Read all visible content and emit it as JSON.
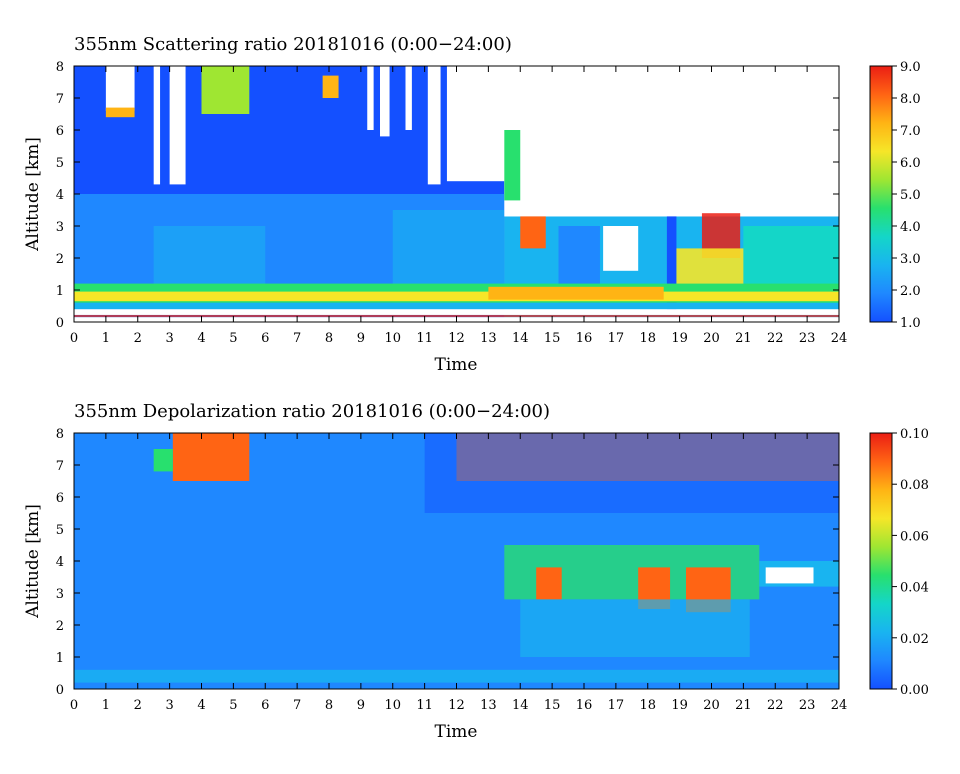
{
  "palette": [
    "#1450ff",
    "#1f88ff",
    "#19b4f0",
    "#14d6c8",
    "#28e06e",
    "#9fe632",
    "#f6e628",
    "#ffb414",
    "#ff6414",
    "#eb1e14"
  ],
  "chart_data": [
    {
      "type": "heatmap",
      "title": "355nm Scattering ratio  20181016 (0:00−24:00)",
      "xlabel": "Time",
      "ylabel": "Altitude [km]",
      "xlim": [
        0,
        24
      ],
      "ylim": [
        0,
        8
      ],
      "x_ticks": [
        "0",
        "1",
        "2",
        "3",
        "4",
        "5",
        "6",
        "7",
        "8",
        "9",
        "10",
        "11",
        "12",
        "13",
        "14",
        "15",
        "16",
        "17",
        "18",
        "19",
        "20",
        "21",
        "22",
        "23",
        "24"
      ],
      "y_ticks": [
        "0",
        "1",
        "2",
        "3",
        "4",
        "5",
        "6",
        "7",
        "8"
      ],
      "colorbar": {
        "min": 1.0,
        "max": 9.0,
        "ticks": [
          "1.0",
          "2.0",
          "3.0",
          "4.0",
          "5.0",
          "6.0",
          "7.0",
          "8.0",
          "9.0"
        ]
      }
    },
    {
      "type": "heatmap",
      "title": "355nm Depolarization ratio  20181016 (0:00−24:00)",
      "xlabel": "Time",
      "ylabel": "Altitude [km]",
      "xlim": [
        0,
        24
      ],
      "ylim": [
        0,
        8
      ],
      "x_ticks": [
        "0",
        "1",
        "2",
        "3",
        "4",
        "5",
        "6",
        "7",
        "8",
        "9",
        "10",
        "11",
        "12",
        "13",
        "14",
        "15",
        "16",
        "17",
        "18",
        "19",
        "20",
        "21",
        "22",
        "23",
        "24"
      ],
      "y_ticks": [
        "0",
        "1",
        "2",
        "3",
        "4",
        "5",
        "6",
        "7",
        "8"
      ],
      "colorbar": {
        "min": 0.0,
        "max": 0.1,
        "ticks": [
          "0.00",
          "0.02",
          "0.04",
          "0.06",
          "0.08",
          "0.10"
        ]
      }
    }
  ]
}
